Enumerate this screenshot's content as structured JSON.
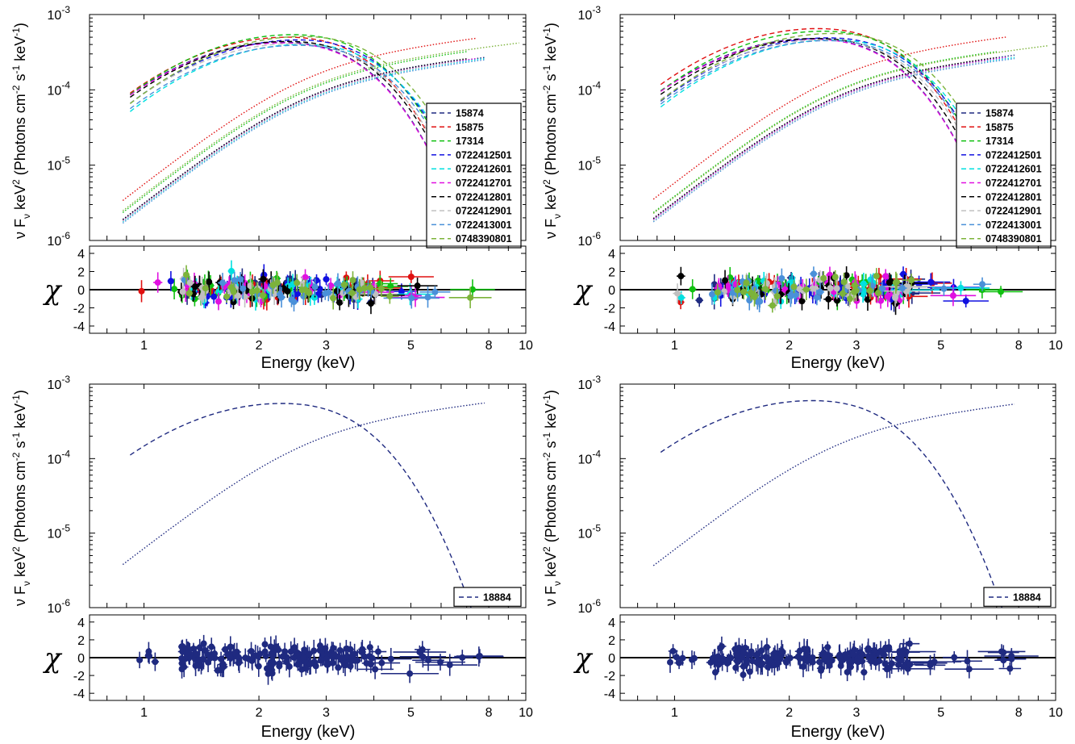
{
  "figure": {
    "xlabel": "Energy (keV)",
    "ylabel_parts": [
      "ν F",
      "ν",
      " keV",
      "2",
      " (Photons cm",
      "-2",
      " s",
      "-1",
      " keV",
      "-1",
      ")"
    ],
    "residual_ylabel": "χ",
    "x_ticks": [
      1,
      2,
      3,
      5,
      8,
      10
    ],
    "x_tick_labels": [
      "1",
      "2",
      "3",
      "5",
      "8",
      "10"
    ],
    "y_ticks_exp": [
      -6,
      -5,
      -4,
      -3
    ],
    "y_tick_base": "10",
    "resid_ticks": [
      -4,
      -2,
      0,
      2,
      4
    ],
    "resid_tick_labels": [
      "-4",
      "-2",
      "0",
      "2",
      "4"
    ]
  },
  "chart_data": [
    {
      "type": "line",
      "panel": "top-left",
      "xlabel": "Energy (keV)",
      "ylabel": "ν Fν keV2 (Photons cm-2 s-1 keV-1)",
      "x_scale": "log",
      "y_scale": "log",
      "xlim": [
        0.72,
        10
      ],
      "ylim": [
        1e-06,
        0.001
      ],
      "legend_position": "right",
      "series": [
        {
          "name": "15874",
          "color": "#1f2a80",
          "dash_peak": 0.00043,
          "dot_plateau": 0.00014
        },
        {
          "name": "15875",
          "color": "#e01010",
          "dash_peak": 0.0005,
          "dot_plateau": 0.00026
        },
        {
          "name": "17314",
          "color": "#10c010",
          "dash_peak": 0.00054,
          "dot_plateau": 0.00018
        },
        {
          "name": "0722412501",
          "color": "#1010e0",
          "dash_peak": 0.00046,
          "dot_plateau": 0.000145
        },
        {
          "name": "0722412601",
          "color": "#00e0e0",
          "dash_peak": 0.0004,
          "dot_plateau": 0.000135
        },
        {
          "name": "0722412701",
          "color": "#e010e0",
          "dash_peak": 0.00042,
          "dot_plateau": 0.00014
        },
        {
          "name": "0722412801",
          "color": "#000000",
          "dash_peak": 0.00044,
          "dot_plateau": 0.000145
        },
        {
          "name": "0722412901",
          "color": "#c0c0c0",
          "dash_peak": 0.00041,
          "dot_plateau": 0.000138
        },
        {
          "name": "0722413001",
          "color": "#4a90d9",
          "dash_peak": 0.00039,
          "dot_plateau": 0.00013
        },
        {
          "name": "0748390801",
          "color": "#7cb33a",
          "dash_peak": 0.00051,
          "dot_plateau": 0.00019
        }
      ]
    },
    {
      "type": "line",
      "panel": "top-right",
      "xlabel": "Energy (keV)",
      "ylabel": "ν Fν keV2 (Photons cm-2 s-1 keV-1)",
      "x_scale": "log",
      "y_scale": "log",
      "xlim": [
        0.72,
        10
      ],
      "ylim": [
        1e-06,
        0.001
      ],
      "legend_position": "right",
      "series": [
        {
          "name": "15874",
          "color": "#1f2a80",
          "dash_peak": 0.00048,
          "dot_plateau": 0.00015
        },
        {
          "name": "15875",
          "color": "#e01010",
          "dash_peak": 0.00065,
          "dot_plateau": 0.00027
        },
        {
          "name": "17314",
          "color": "#10c010",
          "dash_peak": 0.0006,
          "dot_plateau": 0.00018
        },
        {
          "name": "0722412501",
          "color": "#1010e0",
          "dash_peak": 0.00049,
          "dot_plateau": 0.000145
        },
        {
          "name": "0722412601",
          "color": "#00e0e0",
          "dash_peak": 0.00046,
          "dot_plateau": 0.00014
        },
        {
          "name": "0722412701",
          "color": "#e010e0",
          "dash_peak": 0.00047,
          "dot_plateau": 0.000145
        },
        {
          "name": "0722412801",
          "color": "#000000",
          "dash_peak": 0.00048,
          "dot_plateau": 0.00015
        },
        {
          "name": "0722412901",
          "color": "#c0c0c0",
          "dash_peak": 0.00046,
          "dot_plateau": 0.00014
        },
        {
          "name": "0722413001",
          "color": "#4a90d9",
          "dash_peak": 0.00045,
          "dot_plateau": 0.000135
        },
        {
          "name": "0748390801",
          "color": "#7cb33a",
          "dash_peak": 0.00056,
          "dot_plateau": 0.000175
        }
      ]
    },
    {
      "type": "line",
      "panel": "bottom-left",
      "xlabel": "Energy (keV)",
      "ylabel": "ν Fν keV2 (Photons cm-2 s-1 keV-1)",
      "x_scale": "log",
      "y_scale": "log",
      "xlim": [
        0.72,
        10
      ],
      "ylim": [
        1e-06,
        0.001
      ],
      "legend_position": "bottom-right",
      "series": [
        {
          "name": "18884",
          "color": "#1f2a80",
          "dash_peak": 0.00055,
          "dot_plateau": 0.00029
        }
      ]
    },
    {
      "type": "line",
      "panel": "bottom-right",
      "xlabel": "Energy (keV)",
      "ylabel": "ν Fν keV2 (Photons cm-2 s-1 keV-1)",
      "x_scale": "log",
      "y_scale": "log",
      "xlim": [
        0.72,
        10
      ],
      "ylim": [
        1e-06,
        0.001
      ],
      "legend_position": "bottom-right",
      "series": [
        {
          "name": "18884",
          "color": "#1f2a80",
          "dash_peak": 0.0006,
          "dot_plateau": 0.00028
        }
      ]
    }
  ]
}
